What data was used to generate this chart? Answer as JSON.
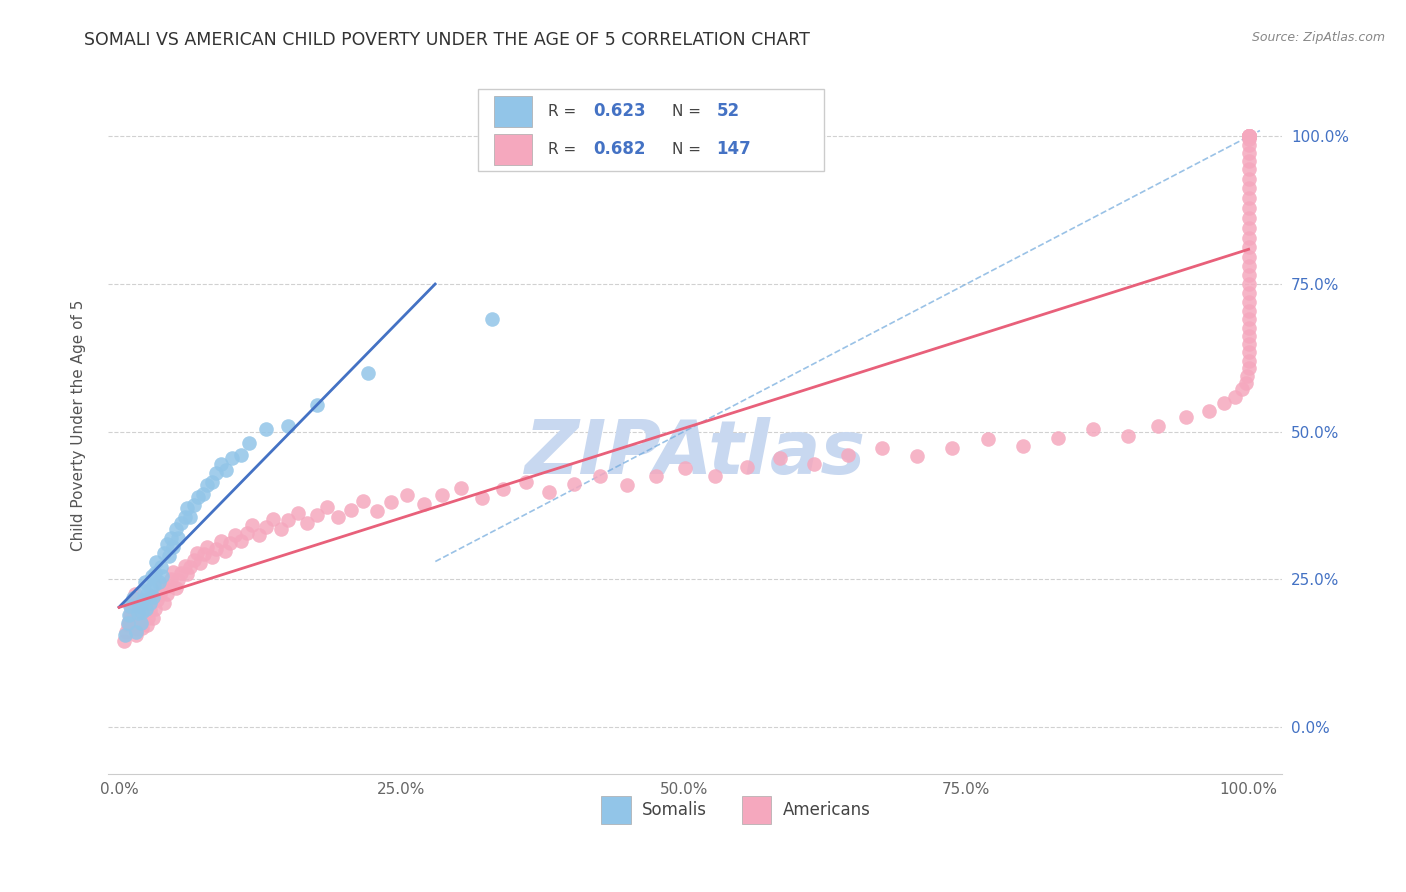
{
  "title": "SOMALI VS AMERICAN CHILD POVERTY UNDER THE AGE OF 5 CORRELATION CHART",
  "source": "Source: ZipAtlas.com",
  "ylabel": "Child Poverty Under the Age of 5",
  "xlim": [
    -0.01,
    1.03
  ],
  "ylim": [
    -0.08,
    1.1
  ],
  "xtick_positions": [
    0.0,
    0.25,
    0.5,
    0.75,
    1.0
  ],
  "xtick_labels": [
    "0.0%",
    "25.0%",
    "50.0%",
    "75.0%",
    "100.0%"
  ],
  "ytick_positions": [
    0.0,
    0.25,
    0.5,
    0.75,
    1.0
  ],
  "ytick_labels_right": [
    "0.0%",
    "25.0%",
    "50.0%",
    "75.0%",
    "100.0%"
  ],
  "somali_R": "0.623",
  "somali_N": "52",
  "american_R": "0.682",
  "american_N": "147",
  "somali_color": "#92C5E8",
  "american_color": "#F5A8BE",
  "somali_line_color": "#4472C4",
  "american_line_color": "#E8607A",
  "diagonal_color": "#6FA8DC",
  "background_color": "#FFFFFF",
  "grid_color": "#CCCCCC",
  "title_color": "#333333",
  "accent_color": "#4472C4",
  "watermark_color": "#C8D8F0",
  "watermark_text": "ZIPAtlas",
  "legend_label_1": "Somalis",
  "legend_label_2": "Americans",
  "somali_x": [
    0.005,
    0.008,
    0.009,
    0.01,
    0.012,
    0.015,
    0.017,
    0.018,
    0.019,
    0.02,
    0.021,
    0.022,
    0.023,
    0.024,
    0.025,
    0.027,
    0.028,
    0.029,
    0.03,
    0.031,
    0.032,
    0.033,
    0.035,
    0.037,
    0.038,
    0.04,
    0.042,
    0.044,
    0.046,
    0.048,
    0.05,
    0.052,
    0.055,
    0.058,
    0.06,
    0.063,
    0.066,
    0.07,
    0.074,
    0.078,
    0.082,
    0.086,
    0.09,
    0.095,
    0.1,
    0.108,
    0.115,
    0.13,
    0.15,
    0.175,
    0.22,
    0.33
  ],
  "somali_y": [
    0.155,
    0.175,
    0.19,
    0.205,
    0.218,
    0.16,
    0.192,
    0.205,
    0.175,
    0.195,
    0.215,
    0.23,
    0.245,
    0.2,
    0.225,
    0.21,
    0.235,
    0.255,
    0.22,
    0.24,
    0.26,
    0.28,
    0.245,
    0.27,
    0.255,
    0.295,
    0.31,
    0.29,
    0.32,
    0.305,
    0.335,
    0.32,
    0.345,
    0.355,
    0.37,
    0.355,
    0.375,
    0.39,
    0.395,
    0.41,
    0.415,
    0.43,
    0.445,
    0.435,
    0.455,
    0.46,
    0.48,
    0.505,
    0.51,
    0.545,
    0.6,
    0.69
  ],
  "american_x": [
    0.004,
    0.006,
    0.008,
    0.009,
    0.01,
    0.011,
    0.012,
    0.013,
    0.014,
    0.015,
    0.016,
    0.017,
    0.018,
    0.019,
    0.02,
    0.021,
    0.022,
    0.023,
    0.024,
    0.025,
    0.026,
    0.027,
    0.028,
    0.029,
    0.03,
    0.032,
    0.034,
    0.036,
    0.038,
    0.04,
    0.042,
    0.044,
    0.046,
    0.048,
    0.05,
    0.052,
    0.055,
    0.058,
    0.06,
    0.063,
    0.066,
    0.069,
    0.072,
    0.075,
    0.078,
    0.082,
    0.086,
    0.09,
    0.094,
    0.098,
    0.103,
    0.108,
    0.113,
    0.118,
    0.124,
    0.13,
    0.136,
    0.143,
    0.15,
    0.158,
    0.166,
    0.175,
    0.184,
    0.194,
    0.205,
    0.216,
    0.228,
    0.241,
    0.255,
    0.27,
    0.286,
    0.303,
    0.321,
    0.34,
    0.36,
    0.381,
    0.403,
    0.426,
    0.45,
    0.475,
    0.501,
    0.528,
    0.556,
    0.585,
    0.615,
    0.645,
    0.675,
    0.706,
    0.737,
    0.769,
    0.8,
    0.831,
    0.862,
    0.893,
    0.92,
    0.945,
    0.965,
    0.978,
    0.988,
    0.994,
    0.998,
    0.999,
    1.0,
    1.0,
    1.0,
    1.0,
    1.0,
    1.0,
    1.0,
    1.0,
    1.0,
    1.0,
    1.0,
    1.0,
    1.0,
    1.0,
    1.0,
    1.0,
    1.0,
    1.0,
    1.0,
    1.0,
    1.0,
    1.0,
    1.0,
    1.0,
    1.0,
    1.0,
    1.0,
    1.0,
    1.0,
    1.0,
    1.0,
    1.0,
    1.0,
    1.0,
    1.0,
    1.0,
    1.0,
    1.0,
    1.0,
    1.0,
    1.0,
    1.0,
    1.0,
    1.0,
    1.0,
    1.0
  ],
  "american_y": [
    0.145,
    0.16,
    0.172,
    0.18,
    0.19,
    0.2,
    0.21,
    0.218,
    0.225,
    0.155,
    0.165,
    0.178,
    0.188,
    0.198,
    0.168,
    0.182,
    0.195,
    0.205,
    0.215,
    0.172,
    0.185,
    0.198,
    0.21,
    0.222,
    0.185,
    0.2,
    0.215,
    0.225,
    0.24,
    0.21,
    0.225,
    0.238,
    0.25,
    0.262,
    0.235,
    0.248,
    0.26,
    0.272,
    0.258,
    0.27,
    0.282,
    0.295,
    0.278,
    0.292,
    0.305,
    0.288,
    0.302,
    0.315,
    0.298,
    0.312,
    0.325,
    0.315,
    0.328,
    0.342,
    0.325,
    0.338,
    0.352,
    0.335,
    0.35,
    0.362,
    0.345,
    0.358,
    0.372,
    0.355,
    0.368,
    0.382,
    0.365,
    0.38,
    0.392,
    0.378,
    0.392,
    0.405,
    0.388,
    0.402,
    0.415,
    0.398,
    0.412,
    0.425,
    0.41,
    0.425,
    0.438,
    0.425,
    0.44,
    0.455,
    0.445,
    0.46,
    0.472,
    0.458,
    0.472,
    0.488,
    0.475,
    0.49,
    0.505,
    0.492,
    0.51,
    0.525,
    0.535,
    0.548,
    0.558,
    0.572,
    0.582,
    0.595,
    0.608,
    0.62,
    0.635,
    0.648,
    0.662,
    0.675,
    0.69,
    0.705,
    0.72,
    0.735,
    0.75,
    0.765,
    0.78,
    0.795,
    0.812,
    0.828,
    0.845,
    0.862,
    0.878,
    0.895,
    0.912,
    0.928,
    0.945,
    0.958,
    0.972,
    0.985,
    0.995,
    1.0,
    1.0,
    1.0,
    1.0,
    1.0,
    1.0,
    1.0,
    1.0,
    1.0,
    1.0,
    1.0,
    1.0,
    1.0,
    1.0,
    1.0,
    1.0,
    1.0,
    1.0,
    1.0
  ]
}
